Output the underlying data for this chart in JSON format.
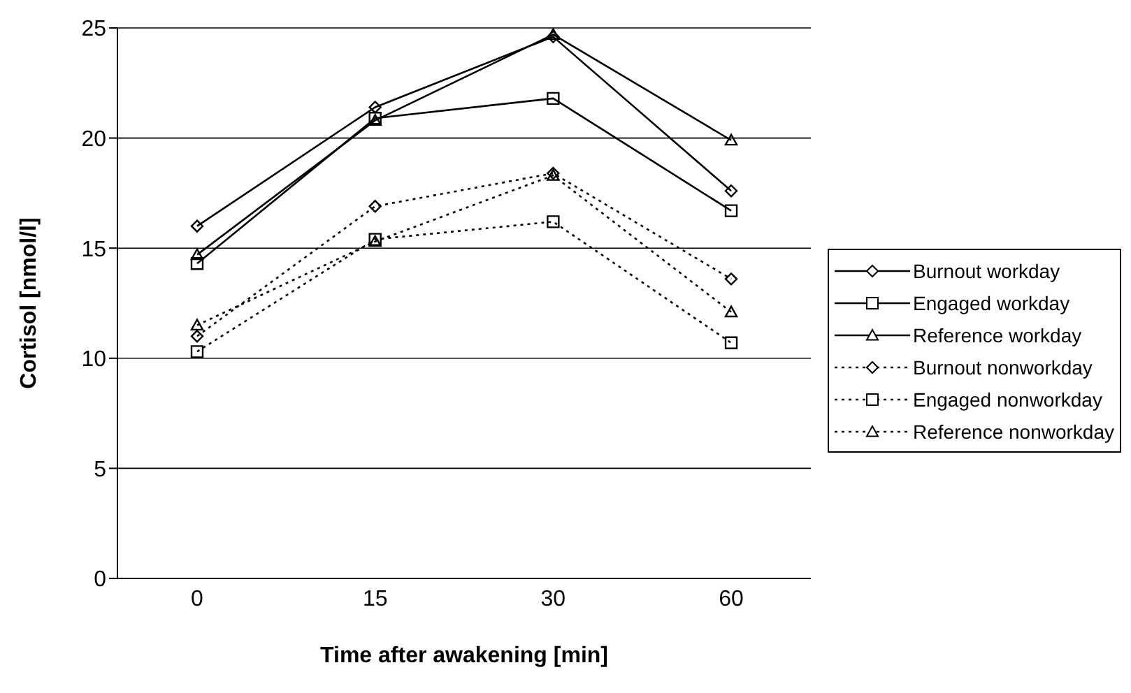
{
  "chart_data": {
    "type": "line",
    "xlabel": "Time after awakening [min]",
    "ylabel": "Cortisol [nmol/l]",
    "categories": [
      "0",
      "15",
      "30",
      "60"
    ],
    "series": [
      {
        "name": "Burnout workday",
        "color": "#000000",
        "marker": "diamond",
        "line_style": "solid",
        "values": [
          16.0,
          21.4,
          24.6,
          17.6
        ]
      },
      {
        "name": "Engaged workday",
        "color": "#000000",
        "marker": "square",
        "line_style": "solid",
        "values": [
          14.3,
          20.9,
          21.8,
          16.7
        ]
      },
      {
        "name": "Reference workday",
        "color": "#000000",
        "marker": "triangle",
        "line_style": "solid",
        "values": [
          14.7,
          20.8,
          24.7,
          19.9
        ]
      },
      {
        "name": "Burnout nonworkday",
        "color": "#000000",
        "marker": "diamond",
        "line_style": "dotted",
        "values": [
          11.0,
          16.9,
          18.4,
          13.6
        ]
      },
      {
        "name": "Engaged nonworkday",
        "color": "#000000",
        "marker": "square",
        "line_style": "dotted",
        "values": [
          10.3,
          15.4,
          16.2,
          10.7
        ]
      },
      {
        "name": "Reference nonworkday",
        "color": "#000000",
        "marker": "triangle",
        "line_style": "dotted",
        "values": [
          11.5,
          15.3,
          18.3,
          12.1
        ]
      }
    ],
    "ylim": [
      0,
      25
    ],
    "yticks": [
      0,
      5,
      10,
      15,
      20,
      25
    ],
    "grid": "y",
    "legend": "right"
  }
}
